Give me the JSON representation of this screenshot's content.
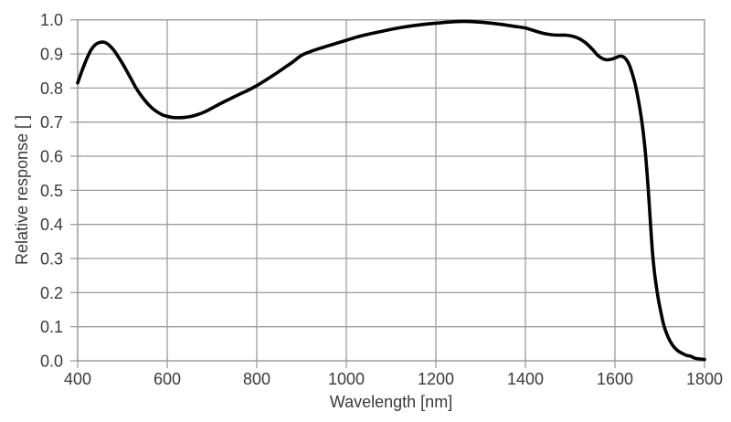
{
  "chart_data": {
    "type": "line",
    "title": "",
    "xlabel": "Wavelength [nm]",
    "ylabel": "Relative response [ ]",
    "xlim": [
      400,
      1800
    ],
    "ylim": [
      0.0,
      1.0
    ],
    "x_ticks": [
      400,
      600,
      800,
      1000,
      1200,
      1400,
      1600,
      1800
    ],
    "y_ticks": [
      0.0,
      0.1,
      0.2,
      0.3,
      0.4,
      0.5,
      0.6,
      0.7,
      0.8,
      0.9,
      1.0
    ],
    "grid": true,
    "legend": "none",
    "colors": {
      "line": "#000000",
      "grid": "#9d9d9d",
      "text": "#3a3a3a",
      "background": "#ffffff"
    },
    "series": [
      {
        "name": "relative_response",
        "points": [
          [
            400,
            0.815
          ],
          [
            410,
            0.852
          ],
          [
            420,
            0.885
          ],
          [
            430,
            0.912
          ],
          [
            440,
            0.928
          ],
          [
            450,
            0.934
          ],
          [
            460,
            0.934
          ],
          [
            470,
            0.926
          ],
          [
            480,
            0.912
          ],
          [
            490,
            0.893
          ],
          [
            500,
            0.872
          ],
          [
            510,
            0.849
          ],
          [
            520,
            0.825
          ],
          [
            530,
            0.801
          ],
          [
            540,
            0.781
          ],
          [
            550,
            0.764
          ],
          [
            560,
            0.749
          ],
          [
            570,
            0.737
          ],
          [
            580,
            0.728
          ],
          [
            590,
            0.721
          ],
          [
            600,
            0.717
          ],
          [
            610,
            0.714
          ],
          [
            620,
            0.713
          ],
          [
            630,
            0.713
          ],
          [
            640,
            0.714
          ],
          [
            650,
            0.716
          ],
          [
            660,
            0.719
          ],
          [
            670,
            0.723
          ],
          [
            680,
            0.728
          ],
          [
            690,
            0.734
          ],
          [
            700,
            0.741
          ],
          [
            720,
            0.755
          ],
          [
            740,
            0.768
          ],
          [
            760,
            0.781
          ],
          [
            780,
            0.793
          ],
          [
            800,
            0.807
          ],
          [
            820,
            0.823
          ],
          [
            840,
            0.84
          ],
          [
            860,
            0.858
          ],
          [
            880,
            0.876
          ],
          [
            900,
            0.896
          ],
          [
            920,
            0.907
          ],
          [
            940,
            0.916
          ],
          [
            960,
            0.924
          ],
          [
            980,
            0.932
          ],
          [
            1000,
            0.94
          ],
          [
            1025,
            0.95
          ],
          [
            1050,
            0.958
          ],
          [
            1075,
            0.965
          ],
          [
            1100,
            0.972
          ],
          [
            1125,
            0.978
          ],
          [
            1150,
            0.983
          ],
          [
            1175,
            0.987
          ],
          [
            1200,
            0.99
          ],
          [
            1225,
            0.993
          ],
          [
            1250,
            0.995
          ],
          [
            1275,
            0.995
          ],
          [
            1300,
            0.993
          ],
          [
            1325,
            0.99
          ],
          [
            1350,
            0.986
          ],
          [
            1375,
            0.981
          ],
          [
            1400,
            0.976
          ],
          [
            1415,
            0.97
          ],
          [
            1430,
            0.964
          ],
          [
            1445,
            0.959
          ],
          [
            1460,
            0.956
          ],
          [
            1475,
            0.955
          ],
          [
            1490,
            0.955
          ],
          [
            1505,
            0.952
          ],
          [
            1520,
            0.945
          ],
          [
            1535,
            0.932
          ],
          [
            1550,
            0.913
          ],
          [
            1560,
            0.898
          ],
          [
            1570,
            0.888
          ],
          [
            1580,
            0.883
          ],
          [
            1590,
            0.884
          ],
          [
            1600,
            0.888
          ],
          [
            1610,
            0.893
          ],
          [
            1618,
            0.892
          ],
          [
            1625,
            0.884
          ],
          [
            1632,
            0.868
          ],
          [
            1638,
            0.845
          ],
          [
            1645,
            0.812
          ],
          [
            1652,
            0.767
          ],
          [
            1658,
            0.72
          ],
          [
            1663,
            0.672
          ],
          [
            1668,
            0.61
          ],
          [
            1672,
            0.545
          ],
          [
            1675,
            0.49
          ],
          [
            1678,
            0.43
          ],
          [
            1681,
            0.37
          ],
          [
            1684,
            0.315
          ],
          [
            1688,
            0.262
          ],
          [
            1692,
            0.222
          ],
          [
            1697,
            0.18
          ],
          [
            1703,
            0.14
          ],
          [
            1709,
            0.105
          ],
          [
            1716,
            0.078
          ],
          [
            1723,
            0.058
          ],
          [
            1731,
            0.042
          ],
          [
            1740,
            0.03
          ],
          [
            1750,
            0.022
          ],
          [
            1760,
            0.016
          ],
          [
            1770,
            0.013
          ],
          [
            1776,
            0.009
          ],
          [
            1785,
            0.006
          ],
          [
            1800,
            0.004
          ]
        ]
      }
    ]
  }
}
